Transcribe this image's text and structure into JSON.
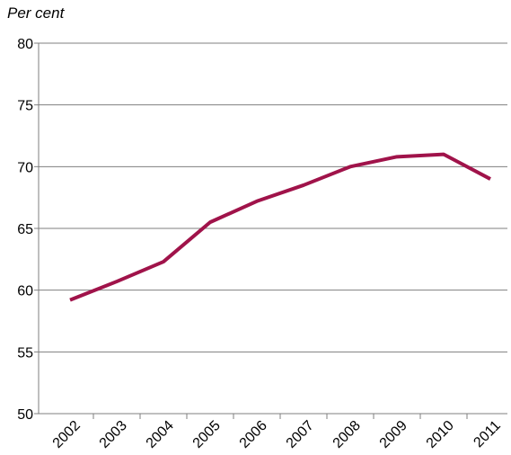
{
  "chart_data": {
    "type": "line",
    "title": "Per cent",
    "categories": [
      "2002",
      "2003",
      "2004",
      "2005",
      "2006",
      "2007",
      "2008",
      "2009",
      "2010",
      "2011"
    ],
    "values": [
      59.2,
      60.7,
      62.3,
      65.5,
      67.2,
      68.5,
      70.0,
      70.8,
      71.0,
      69.0
    ],
    "color": "#a0134a",
    "ylim": [
      50,
      80
    ],
    "yticks": [
      50,
      55,
      60,
      65,
      70,
      75,
      80
    ],
    "grid": true
  }
}
